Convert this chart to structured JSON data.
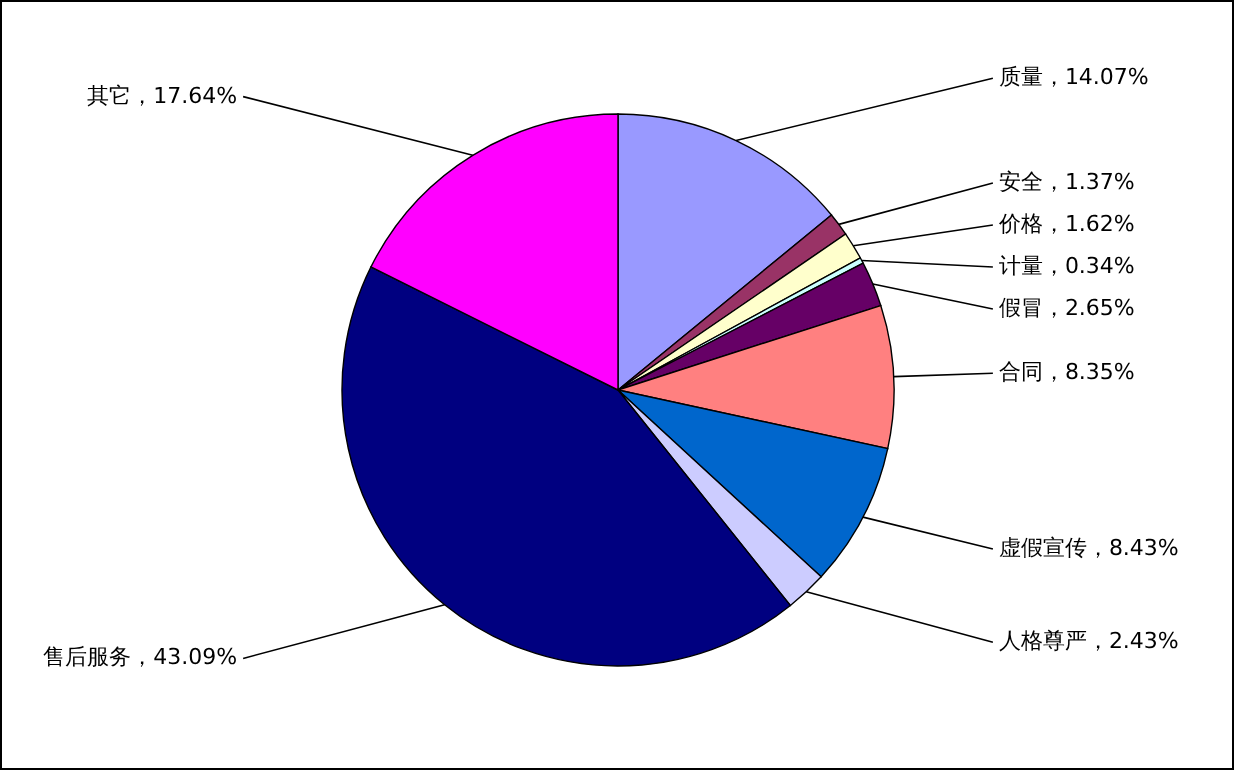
{
  "chart_data": {
    "type": "pie",
    "categories": [
      "质量",
      "安全",
      "价格",
      "计量",
      "假冒",
      "合同",
      "虚假宣传",
      "人格尊严",
      "售后服务",
      "其它"
    ],
    "values": [
      14.07,
      1.37,
      1.62,
      0.34,
      2.65,
      8.35,
      8.43,
      2.43,
      43.09,
      17.64
    ],
    "value_labels": [
      "14.07%",
      "1.37%",
      "1.62%",
      "0.34%",
      "2.65%",
      "8.35%",
      "8.43%",
      "2.43%",
      "43.09%",
      "17.64%"
    ],
    "colors": [
      "#9999ff",
      "#993366",
      "#ffffcc",
      "#ccffff",
      "#660066",
      "#ff8080",
      "#0066cc",
      "#ccccff",
      "#000080",
      "#ff00ff"
    ]
  }
}
